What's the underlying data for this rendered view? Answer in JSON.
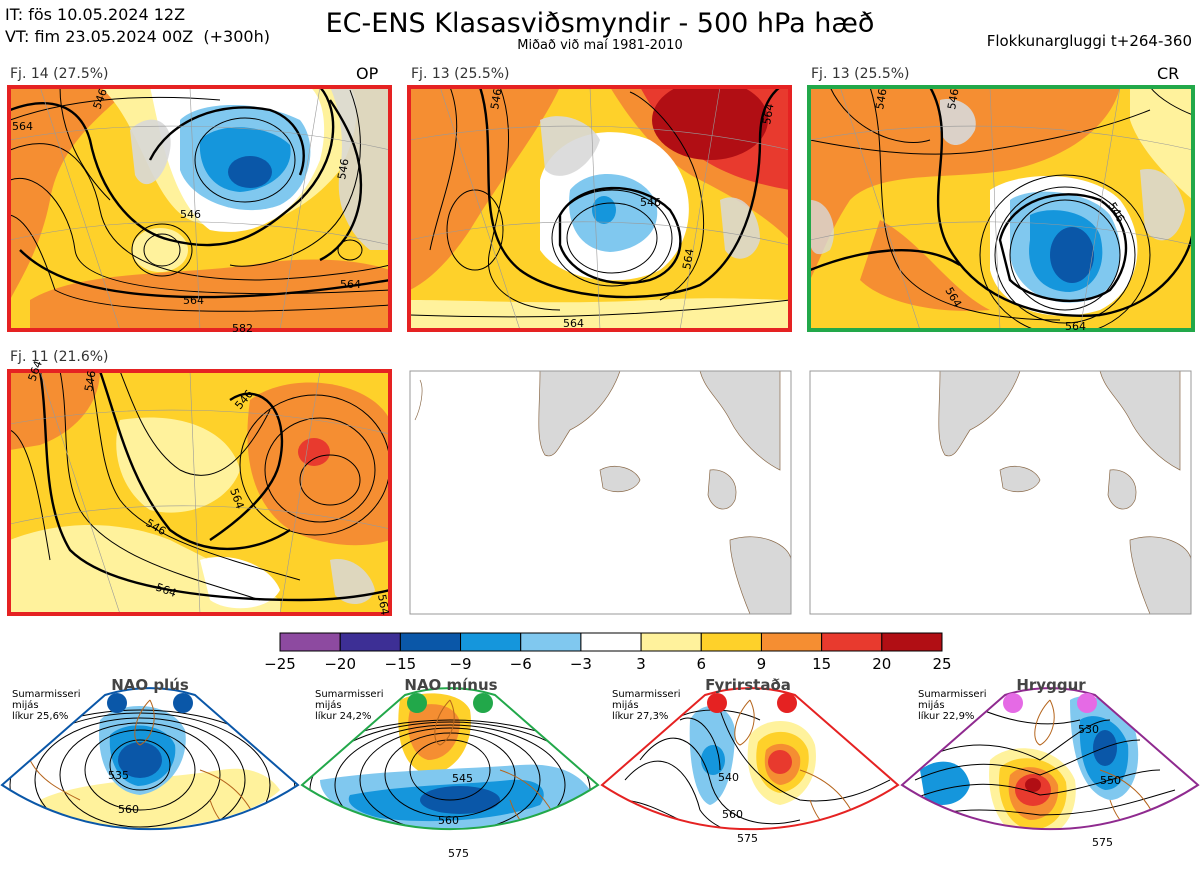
{
  "header": {
    "issue_time": "IT: fös 10.05.2024 12Z",
    "valid_time": "VT: fim 23.05.2024 00Z  (+300h)",
    "title": "EC-ENS Klasasviðsmyndir - 500 hPa hæð",
    "subtitle": "Miðað við maí 1981-2010",
    "window": "Flokkunargluggi t+264-360"
  },
  "panels": [
    {
      "label": "Fj. 14 (27.5%)",
      "tag": "OP",
      "border": "#e52222",
      "contours": [
        "546",
        "564",
        "546",
        "546",
        "564",
        "564",
        "582"
      ]
    },
    {
      "label": "Fj. 13 (25.5%)",
      "tag": "",
      "border": "#e52222",
      "contours": [
        "546",
        "564",
        "546",
        "564",
        "564"
      ]
    },
    {
      "label": "Fj. 13 (25.5%)",
      "tag": "CR",
      "border": "#22a84a",
      "contours": [
        "546",
        "546",
        "564",
        "546",
        "564"
      ]
    },
    {
      "label": "Fj. 11 (21.6%)",
      "tag": "",
      "border": "#e52222",
      "contours": [
        "546",
        "546",
        "546",
        "564",
        "564",
        "564",
        "564"
      ]
    }
  ],
  "colorbar": {
    "ticks": [
      "−25",
      "−20",
      "−15",
      "−9",
      "−6",
      "−3",
      "3",
      "6",
      "9",
      "15",
      "20",
      "25"
    ],
    "colors": [
      "#8d4aa0",
      "#3d2f95",
      "#0a57a8",
      "#1596dc",
      "#80c8ef",
      "#ffffff",
      "#fff29c",
      "#fed12a",
      "#f58e32",
      "#e83a2e",
      "#b10e14"
    ]
  },
  "regimes": [
    {
      "name": "NAO plús",
      "season": "Sumarmisseri",
      "freq_word": "mijás",
      "likelihood": "líkur 25,6%",
      "color": "#0a57a8",
      "contours": [
        "535",
        "560"
      ]
    },
    {
      "name": "NAO mínus",
      "season": "Sumarmisseri",
      "freq_word": "mijás",
      "likelihood": "líkur 24,2%",
      "color": "#22a84a",
      "contours": [
        "545",
        "560",
        "575"
      ]
    },
    {
      "name": "Fyrirstaða",
      "season": "Sumarmisseri",
      "freq_word": "mijás",
      "likelihood": "líkur 27,3%",
      "color": "#e52222",
      "contours": [
        "540",
        "560",
        "575"
      ]
    },
    {
      "name": "Hryggur",
      "season": "Sumarmisseri",
      "freq_word": "mijás",
      "likelihood": "líkur 22,9%",
      "color": "#e56ae5",
      "contours": [
        "530",
        "550",
        "575"
      ]
    }
  ]
}
